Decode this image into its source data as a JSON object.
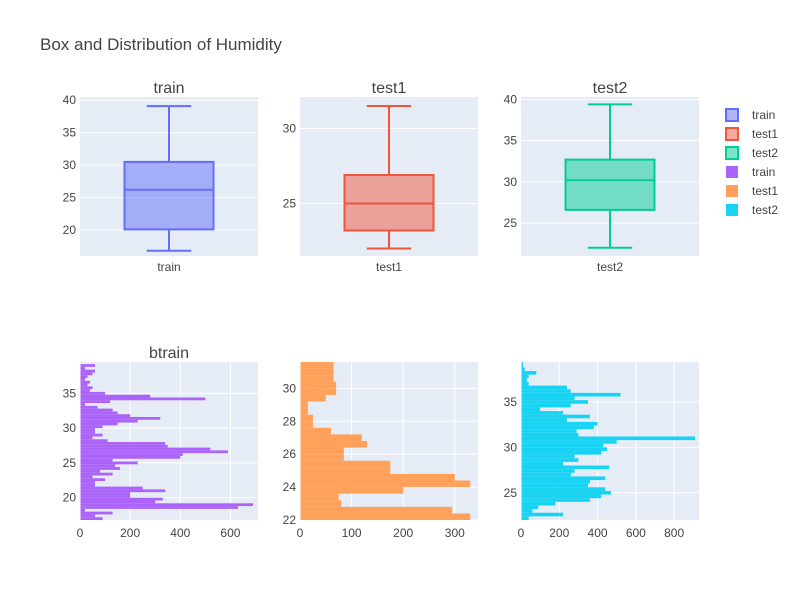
{
  "title": "Box and Distribution of Humidity",
  "colors": {
    "train": "#636efa",
    "test1": "#ef553b",
    "test2": "#00cc96",
    "train_hist": "#ab63fa",
    "test1_hist": "#ffa15a",
    "test2_hist": "#19d3f3",
    "plot_bg": "#e5ecf6",
    "grid": "#ffffff",
    "text": "#444444"
  },
  "legend": {
    "placement": "right",
    "entries": [
      {
        "name": "train",
        "kind": "box",
        "color": "#636efa"
      },
      {
        "name": "test1",
        "kind": "box",
        "color": "#ef553b"
      },
      {
        "name": "test2",
        "kind": "box",
        "color": "#00cc96"
      },
      {
        "name": "train",
        "kind": "hist",
        "color": "#ab63fa"
      },
      {
        "name": "test1",
        "kind": "hist",
        "color": "#ffa15a"
      },
      {
        "name": "test2",
        "kind": "hist",
        "color": "#19d3f3"
      }
    ]
  },
  "chart_data": [
    {
      "type": "box",
      "title": "train",
      "category": "train",
      "color": "#636efa",
      "ylim": [
        16,
        40.5
      ],
      "yticks": [
        20,
        25,
        30,
        35,
        40
      ],
      "min": 16.8,
      "q1": 20.1,
      "median": 26.2,
      "q3": 30.5,
      "max": 39.1
    },
    {
      "type": "box",
      "title": "test1",
      "category": "test1",
      "color": "#ef553b",
      "ylim": [
        21.5,
        32.1
      ],
      "yticks": [
        25,
        30
      ],
      "min": 22.0,
      "q1": 23.2,
      "median": 25.0,
      "q3": 26.9,
      "max": 31.5
    },
    {
      "type": "box",
      "title": "test2",
      "category": "test2",
      "color": "#00cc96",
      "ylim": [
        21,
        40.3
      ],
      "yticks": [
        25,
        30,
        35,
        40
      ],
      "min": 22.0,
      "q1": 26.6,
      "median": 30.2,
      "q3": 32.7,
      "max": 39.4
    },
    {
      "type": "bar",
      "orientation": "horizontal",
      "title": "btrain",
      "color": "#ab63fa",
      "xlim": [
        0,
        710
      ],
      "xticks": [
        0,
        200,
        400,
        600
      ],
      "ylim": [
        16.8,
        39.5
      ],
      "yticks": [
        20,
        25,
        30,
        35
      ],
      "bin_width": 0.4,
      "bins_start": 16.8,
      "counts": [
        90,
        60,
        130,
        20,
        630,
        690,
        300,
        330,
        200,
        200,
        340,
        250,
        60,
        60,
        100,
        50,
        130,
        80,
        160,
        140,
        230,
        130,
        400,
        410,
        590,
        520,
        350,
        340,
        110,
        50,
        90,
        60,
        60,
        90,
        150,
        230,
        320,
        200,
        150,
        130,
        70,
        20,
        120,
        500,
        280,
        100,
        40,
        50,
        30,
        40,
        20,
        30,
        50,
        60,
        20,
        60
      ]
    },
    {
      "type": "bar",
      "orientation": "horizontal",
      "title": "",
      "color": "#ffa15a",
      "xlim": [
        0,
        345
      ],
      "xticks": [
        0,
        100,
        200,
        300
      ],
      "ylim": [
        22,
        31.6
      ],
      "yticks": [
        22,
        24,
        26,
        28,
        30
      ],
      "bin_width": 0.4,
      "bins_start": 22.0,
      "counts": [
        330,
        295,
        80,
        75,
        200,
        330,
        300,
        175,
        175,
        85,
        85,
        130,
        120,
        60,
        25,
        25,
        15,
        15,
        50,
        70,
        70,
        65,
        65,
        65
      ]
    },
    {
      "type": "bar",
      "orientation": "horizontal",
      "title": "",
      "color": "#19d3f3",
      "xlim": [
        0,
        930
      ],
      "xticks": [
        0,
        200,
        400,
        600,
        800
      ],
      "ylim": [
        22,
        39.4
      ],
      "yticks": [
        25,
        30,
        35
      ],
      "bin_width": 0.4,
      "bins_start": 22.0,
      "counts": [
        40,
        220,
        60,
        90,
        180,
        360,
        420,
        470,
        440,
        350,
        360,
        440,
        260,
        280,
        460,
        220,
        300,
        280,
        420,
        450,
        430,
        500,
        910,
        300,
        290,
        380,
        400,
        240,
        360,
        220,
        100,
        260,
        350,
        280,
        520,
        260,
        240,
        40,
        30,
        40,
        80,
        20,
        10,
        10
      ]
    }
  ]
}
